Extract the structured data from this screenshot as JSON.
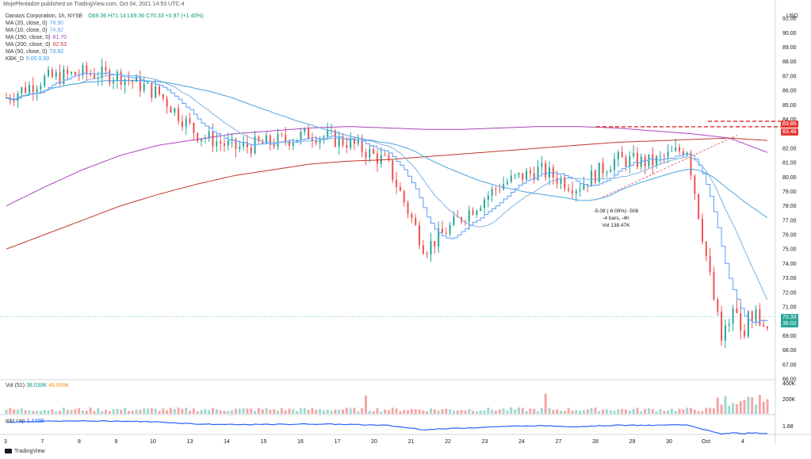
{
  "header": {
    "published_line": "MojePlenladze published on TradingView.com, Oct 04, 2021 14:53 UTC-4",
    "symbol_line": "Danaos Corporation, 1h, NYSE",
    "ohlc": {
      "open": "O69.36",
      "high": "H71.14",
      "low": "L69.36",
      "close": "C70.33",
      "change": "+0.97 (+1.40%)"
    }
  },
  "indicators": [
    {
      "label": "MA (20, close, 0)",
      "value": "78.90",
      "color": "#5b9cf6"
    },
    {
      "label": "MA (10, close, 0)",
      "value": "74.92",
      "color": "#5b9cf6"
    },
    {
      "label": "MA (150, close, 0)",
      "value": "81.70",
      "color": "#ab47bc"
    },
    {
      "label": "MA (200, close, 0)",
      "value": "82.53",
      "color": "#c0392b"
    },
    {
      "label": "MA (50, close, 0)",
      "value": "73.92",
      "color": "#2196f3"
    },
    {
      "label": "KBK_D",
      "value": "0.00  0.00",
      "color": "#2196f3"
    }
  ],
  "volume_legend": {
    "label": "Vol (51)",
    "v1": "38.039K",
    "v2": "46.695K"
  },
  "mcap_legend": {
    "label": "mkt cap",
    "value": "1.449B"
  },
  "price_axis": {
    "currency": "USD",
    "ticks": [
      "91.00",
      "90.00",
      "89.00",
      "88.00",
      "87.00",
      "86.00",
      "85.00",
      "84.00",
      "83.00",
      "82.00",
      "81.00",
      "80.00",
      "79.00",
      "78.00",
      "77.00",
      "76.00",
      "75.00",
      "74.00",
      "73.00",
      "72.00",
      "71.00",
      "70.00",
      "69.00",
      "68.00",
      "67.00",
      "66.00"
    ],
    "volume_ticks": [
      "400K",
      "200K"
    ],
    "mcap_tick": "1.68"
  },
  "price_labels": {
    "top_line": "83.86",
    "second_line": "83.48",
    "last_price": "70.33",
    "countdown": "36:02"
  },
  "time_axis": [
    "3",
    "7",
    "8",
    "9",
    "10",
    "13",
    "14",
    "15",
    "16",
    "17",
    "20",
    "21",
    "22",
    "23",
    "24",
    "27",
    "28",
    "29",
    "30",
    "Oct",
    "4"
  ],
  "annotation": {
    "line1": "-5.08 (-6.09%) -508",
    "line2": "-4 bars, -4h",
    "line3": "Vol 138.47K"
  },
  "footer": {
    "brand": "TradingView"
  },
  "chart_data": {
    "type": "line",
    "title": "Danaos Corporation, 1h, NYSE",
    "x": [
      "3",
      "7",
      "8",
      "9",
      "10",
      "13",
      "14",
      "15",
      "16",
      "17",
      "20",
      "21",
      "22",
      "23",
      "24",
      "27",
      "28",
      "29",
      "30",
      "Oct",
      "4"
    ],
    "series": [
      {
        "name": "price (approx. close)",
        "values": [
          85.5,
          86.8,
          87.2,
          87.0,
          85.8,
          83.0,
          82.0,
          82.4,
          83.0,
          82.4,
          81.0,
          75.0,
          77.3,
          79.5,
          80.5,
          79.3,
          81.2,
          81.0,
          82.2,
          82.5,
          70.3
        ]
      },
      {
        "name": "MA (200, close, 0)",
        "values": [
          75.0,
          76.0,
          77.0,
          78.0,
          78.8,
          79.5,
          80.1,
          80.5,
          80.9,
          81.1,
          81.2,
          81.4,
          81.6,
          81.8,
          82.0,
          82.2,
          82.4,
          82.5,
          82.6,
          82.7,
          82.53
        ]
      },
      {
        "name": "MA (150, close, 0)",
        "values": [
          78.0,
          79.3,
          80.5,
          81.5,
          82.2,
          82.6,
          83.0,
          83.2,
          83.4,
          83.5,
          83.4,
          83.3,
          83.3,
          83.4,
          83.5,
          83.5,
          83.4,
          83.2,
          83.0,
          82.7,
          81.7
        ]
      }
    ],
    "ylim": [
      66,
      91.5
    ],
    "grid": true,
    "legend": "top-left"
  }
}
